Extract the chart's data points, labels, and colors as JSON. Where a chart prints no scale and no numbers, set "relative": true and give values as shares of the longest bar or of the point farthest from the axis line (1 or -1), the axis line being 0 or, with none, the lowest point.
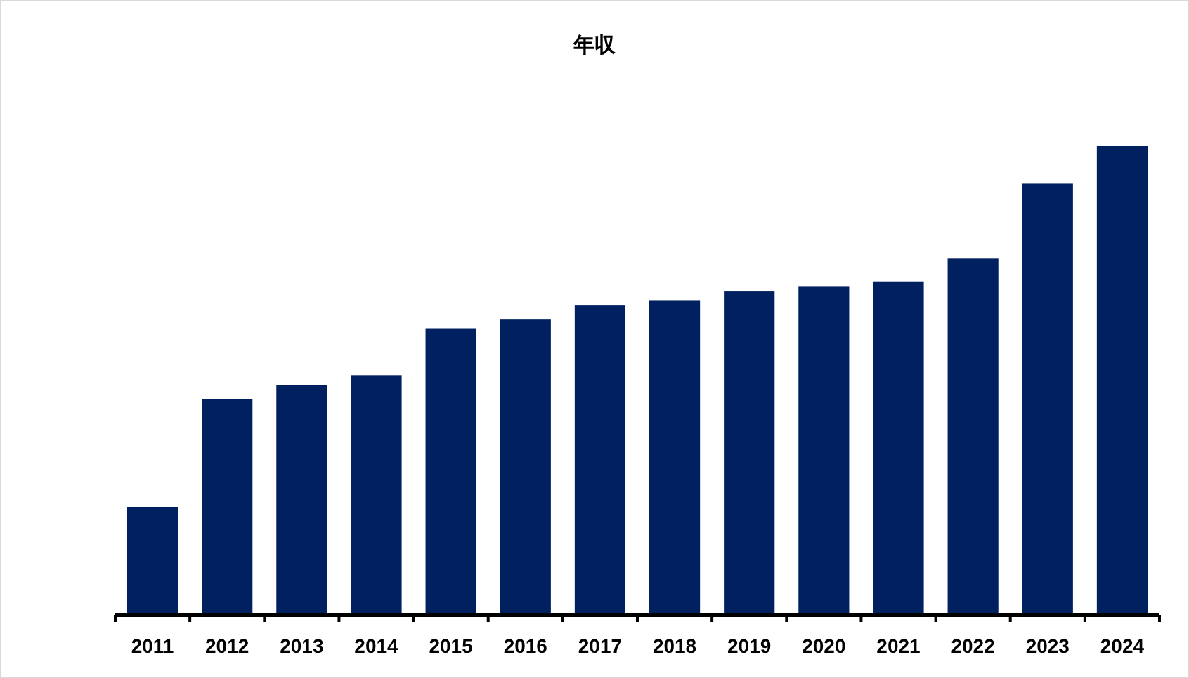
{
  "chart_data": {
    "type": "bar",
    "title": "年収",
    "relative": true,
    "categories": [
      "2011",
      "2012",
      "2013",
      "2014",
      "2015",
      "2016",
      "2017",
      "2018",
      "2019",
      "2020",
      "2021",
      "2022",
      "2023",
      "2024"
    ],
    "values": [
      0.23,
      0.46,
      0.49,
      0.51,
      0.61,
      0.63,
      0.66,
      0.67,
      0.69,
      0.7,
      0.71,
      0.76,
      0.92,
      1
    ],
    "color": "#002060"
  }
}
